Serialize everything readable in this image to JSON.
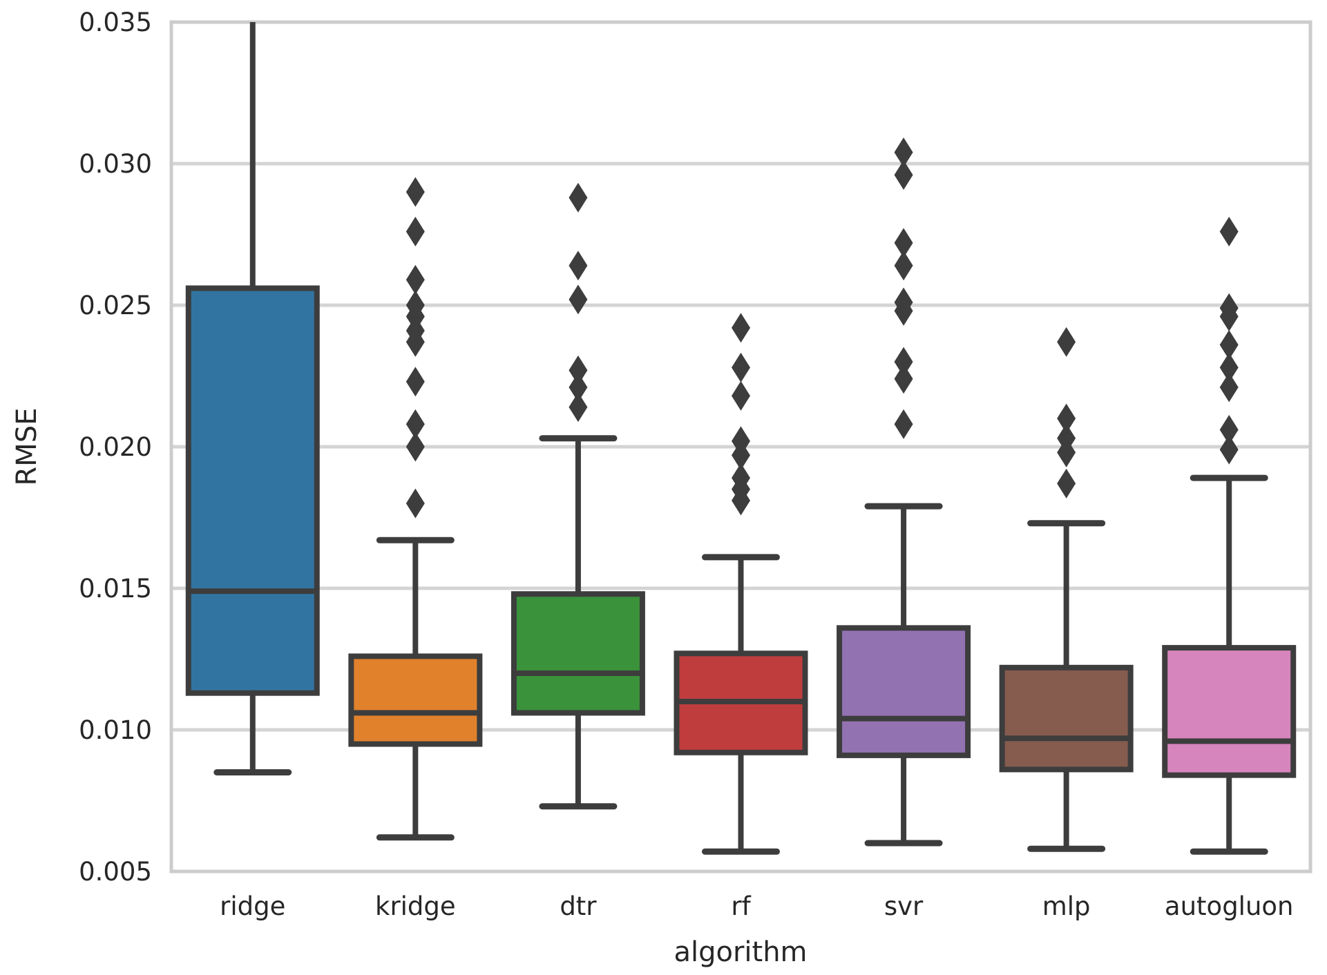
{
  "figure": {
    "background": "#ffffff",
    "text_color": "#262626",
    "grid_color": "#d4d4d4",
    "spine_color": "#cccccc",
    "box_line_color": "#3d3d3d"
  },
  "chart_data": {
    "type": "box",
    "title": "",
    "xlabel": "algorithm",
    "ylabel": "RMSE",
    "ylim": [
      0.005,
      0.035
    ],
    "yticks": [
      0.005,
      0.01,
      0.015,
      0.02,
      0.025,
      0.03,
      0.035
    ],
    "ytick_labels": [
      "0.005",
      "0.010",
      "0.015",
      "0.020",
      "0.025",
      "0.030",
      "0.035"
    ],
    "grid": "horizontal",
    "legend": "none",
    "outlier_marker": "diamond",
    "categories": [
      "ridge",
      "kridge",
      "dtr",
      "rf",
      "svr",
      "mlp",
      "autogluon"
    ],
    "series": [
      {
        "name": "ridge",
        "color": "#3274a1",
        "whislo": 0.0085,
        "q1": 0.0113,
        "med": 0.0149,
        "q3": 0.0256,
        "whishi": 0.035,
        "whishi_cap": false,
        "fliers": []
      },
      {
        "name": "kridge",
        "color": "#e1812c",
        "whislo": 0.0062,
        "q1": 0.0095,
        "med": 0.0106,
        "q3": 0.0126,
        "whishi": 0.0167,
        "whishi_cap": true,
        "fliers": [
          0.029,
          0.0276,
          0.0259,
          0.025,
          0.0246,
          0.0241,
          0.0237,
          0.0223,
          0.0208,
          0.02,
          0.018
        ]
      },
      {
        "name": "dtr",
        "color": "#3a923a",
        "whislo": 0.0073,
        "q1": 0.0106,
        "med": 0.012,
        "q3": 0.0148,
        "whishi": 0.0203,
        "whishi_cap": true,
        "fliers": [
          0.0288,
          0.0264,
          0.0252,
          0.0227,
          0.0221,
          0.0214
        ]
      },
      {
        "name": "rf",
        "color": "#c03d3e",
        "whislo": 0.0057,
        "q1": 0.0092,
        "med": 0.011,
        "q3": 0.0127,
        "whishi": 0.0161,
        "whishi_cap": true,
        "fliers": [
          0.0242,
          0.0228,
          0.0218,
          0.0202,
          0.0197,
          0.0189,
          0.0185,
          0.0181
        ]
      },
      {
        "name": "svr",
        "color": "#9372b2",
        "whislo": 0.006,
        "q1": 0.0091,
        "med": 0.0104,
        "q3": 0.0136,
        "whishi": 0.0179,
        "whishi_cap": true,
        "fliers": [
          0.0304,
          0.0296,
          0.0272,
          0.0264,
          0.0251,
          0.0248,
          0.023,
          0.0224,
          0.0208
        ]
      },
      {
        "name": "mlp",
        "color": "#855c4e",
        "whislo": 0.0058,
        "q1": 0.0086,
        "med": 0.0097,
        "q3": 0.0122,
        "whishi": 0.0173,
        "whishi_cap": true,
        "fliers": [
          0.0237,
          0.021,
          0.0203,
          0.0198,
          0.0187
        ]
      },
      {
        "name": "autogluon",
        "color": "#d685bd",
        "whislo": 0.0057,
        "q1": 0.0084,
        "med": 0.0096,
        "q3": 0.0129,
        "whishi": 0.0189,
        "whishi_cap": true,
        "fliers": [
          0.0276,
          0.0249,
          0.0246,
          0.0236,
          0.0228,
          0.0221,
          0.0206,
          0.0199
        ]
      }
    ]
  }
}
